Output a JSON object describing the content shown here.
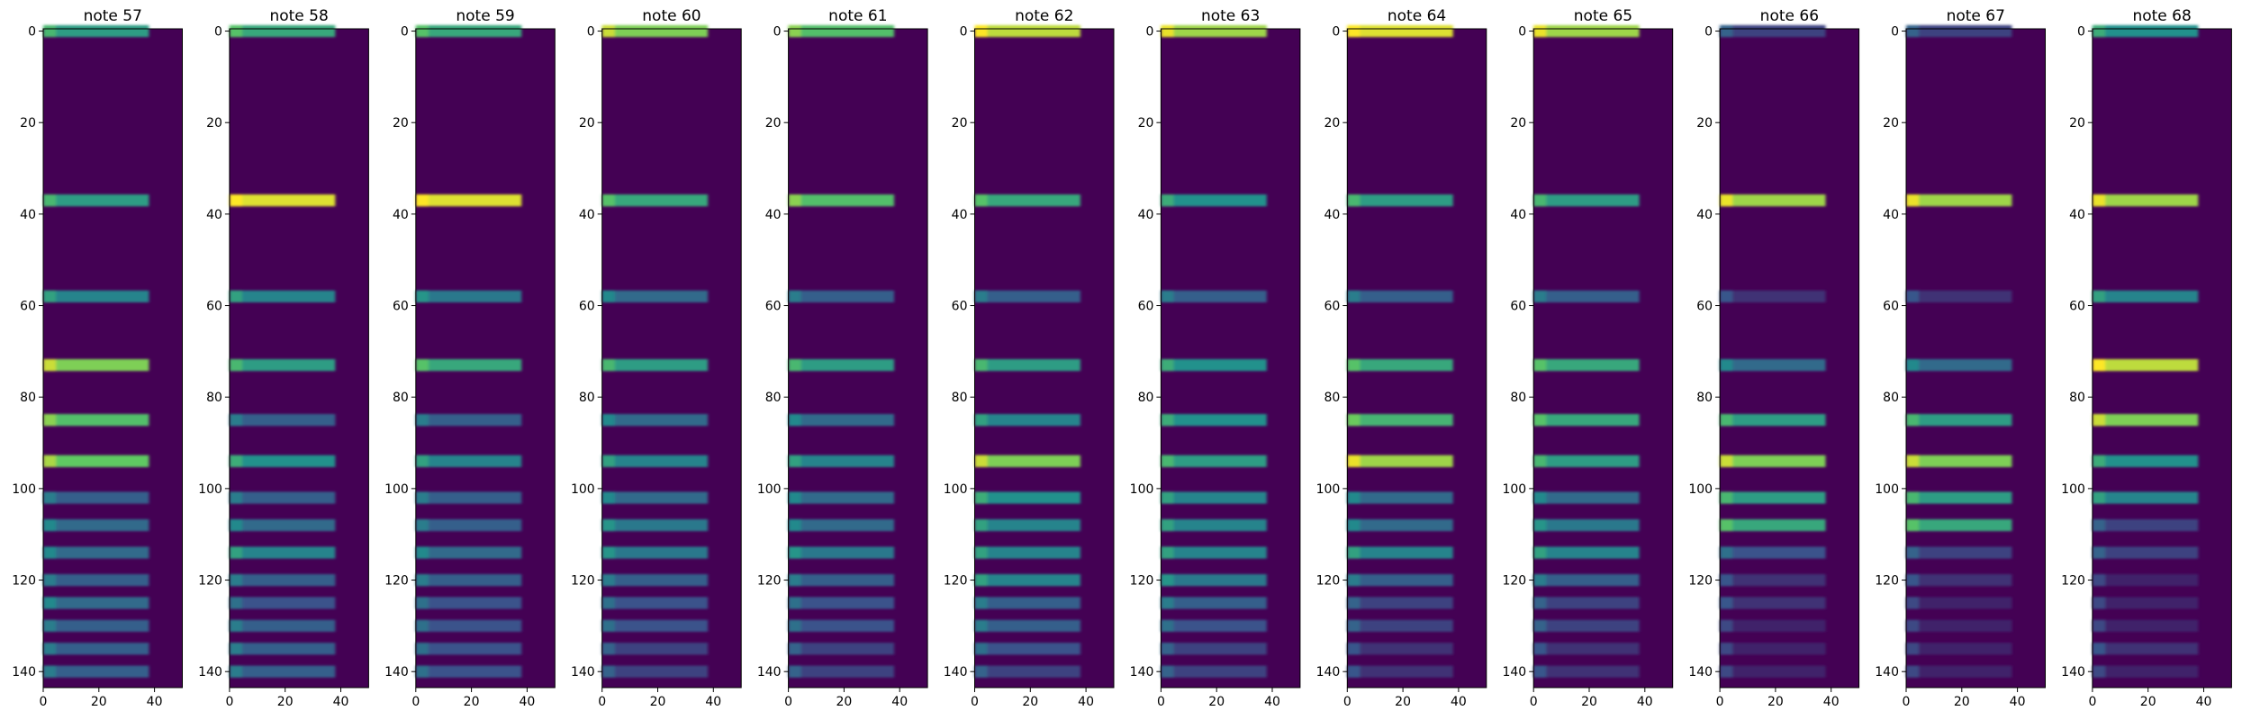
{
  "chart_data": {
    "type": "heatmap",
    "colormap": "viridis",
    "colormap_endpoints": [
      "#440154",
      "#fde725"
    ],
    "xlim": [
      0,
      50
    ],
    "ylim": [
      143.5,
      -0.5
    ],
    "xticks": [
      0,
      20,
      40
    ],
    "yticks": [
      0,
      20,
      40,
      60,
      80,
      100,
      120,
      140
    ],
    "xtick_labels": [
      "0",
      "20",
      "40"
    ],
    "ytick_labels": [
      "0",
      "20",
      "40",
      "60",
      "80",
      "100",
      "120",
      "140"
    ],
    "active_x_range": [
      0,
      38
    ],
    "band_rows": [
      0,
      37,
      58,
      73,
      85,
      94,
      102,
      108,
      114,
      120,
      125,
      130,
      135,
      140
    ],
    "panels": [
      {
        "title": "note 57",
        "intensity": [
          0.55,
          0.55,
          0.45,
          0.8,
          0.7,
          0.75,
          0.3,
          0.35,
          0.35,
          0.3,
          0.35,
          0.3,
          0.3,
          0.3
        ]
      },
      {
        "title": "note 58",
        "intensity": [
          0.6,
          0.95,
          0.45,
          0.55,
          0.3,
          0.5,
          0.3,
          0.35,
          0.45,
          0.3,
          0.25,
          0.3,
          0.3,
          0.3
        ]
      },
      {
        "title": "note 59",
        "intensity": [
          0.6,
          0.95,
          0.4,
          0.6,
          0.3,
          0.45,
          0.3,
          0.3,
          0.35,
          0.3,
          0.25,
          0.25,
          0.25,
          0.25
        ]
      },
      {
        "title": "note 60",
        "intensity": [
          0.8,
          0.6,
          0.35,
          0.55,
          0.35,
          0.45,
          0.35,
          0.4,
          0.4,
          0.3,
          0.25,
          0.25,
          0.2,
          0.2
        ]
      },
      {
        "title": "note 61",
        "intensity": [
          0.7,
          0.7,
          0.3,
          0.55,
          0.35,
          0.45,
          0.35,
          0.35,
          0.4,
          0.3,
          0.25,
          0.25,
          0.2,
          0.2
        ]
      },
      {
        "title": "note 62",
        "intensity": [
          0.9,
          0.6,
          0.3,
          0.55,
          0.45,
          0.8,
          0.5,
          0.45,
          0.45,
          0.45,
          0.3,
          0.3,
          0.25,
          0.2
        ]
      },
      {
        "title": "note 63",
        "intensity": [
          0.85,
          0.5,
          0.3,
          0.5,
          0.5,
          0.55,
          0.45,
          0.45,
          0.45,
          0.4,
          0.3,
          0.25,
          0.2,
          0.2
        ]
      },
      {
        "title": "note 64",
        "intensity": [
          0.95,
          0.55,
          0.3,
          0.6,
          0.65,
          0.85,
          0.35,
          0.35,
          0.45,
          0.3,
          0.2,
          0.2,
          0.15,
          0.15
        ]
      },
      {
        "title": "note 65",
        "intensity": [
          0.85,
          0.55,
          0.3,
          0.6,
          0.6,
          0.55,
          0.35,
          0.4,
          0.45,
          0.3,
          0.2,
          0.2,
          0.15,
          0.15
        ]
      },
      {
        "title": "note 66",
        "intensity": [
          0.2,
          0.85,
          0.15,
          0.35,
          0.55,
          0.8,
          0.55,
          0.6,
          0.25,
          0.15,
          0.15,
          0.1,
          0.1,
          0.1
        ]
      },
      {
        "title": "note 67",
        "intensity": [
          0.2,
          0.85,
          0.15,
          0.35,
          0.55,
          0.8,
          0.55,
          0.6,
          0.2,
          0.15,
          0.1,
          0.1,
          0.1,
          0.1
        ]
      },
      {
        "title": "note 68",
        "intensity": [
          0.5,
          0.85,
          0.45,
          0.9,
          0.8,
          0.5,
          0.45,
          0.2,
          0.2,
          0.1,
          0.1,
          0.1,
          0.15,
          0.1
        ]
      }
    ]
  }
}
